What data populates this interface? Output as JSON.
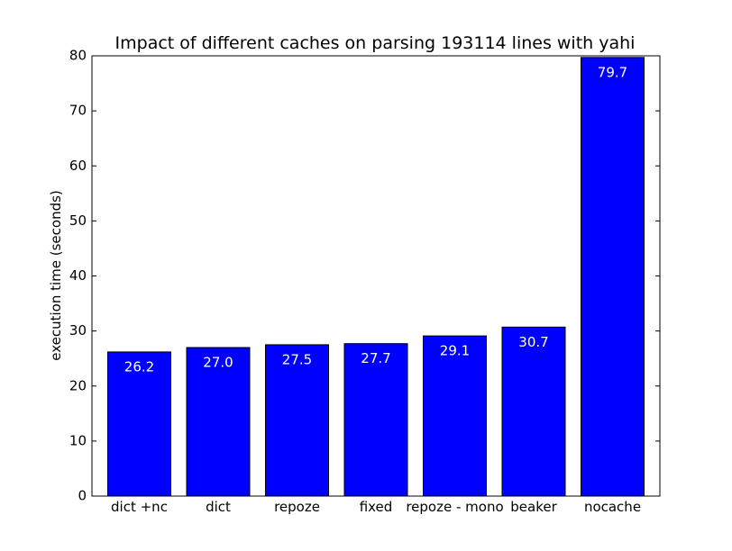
{
  "chart_data": {
    "type": "bar",
    "title": "Impact of different caches on parsing 193114 lines with yahi",
    "xlabel": "",
    "ylabel": "execution time (seconds)",
    "ylim": [
      0,
      80
    ],
    "yticks": [
      0,
      10,
      20,
      30,
      40,
      50,
      60,
      70,
      80
    ],
    "categories": [
      "dict +nc",
      "dict",
      "repoze",
      "fixed",
      "repoze - mono",
      "beaker",
      "nocache"
    ],
    "values": [
      26.2,
      27.0,
      27.5,
      27.7,
      29.1,
      30.7,
      79.7
    ],
    "value_labels": [
      "26.2",
      "27.0",
      "27.5",
      "27.7",
      "29.1",
      "30.7",
      "79.7"
    ],
    "grid": false,
    "bar_color": "#0000ff"
  }
}
